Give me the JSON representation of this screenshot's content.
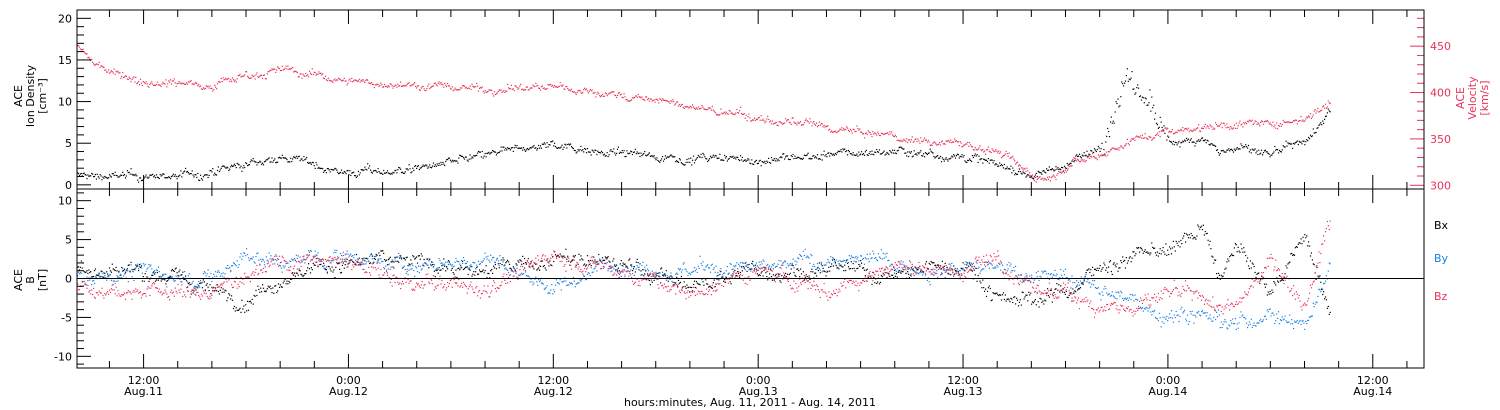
{
  "figure": {
    "xlabel": "hours:minutes, Aug. 11, 2011 - Aug. 14, 2011",
    "time_ticks": [
      {
        "t": 12,
        "time": "12:00",
        "date": "Aug.11"
      },
      {
        "t": 24,
        "time": "0:00",
        "date": "Aug.12"
      },
      {
        "t": 36,
        "time": "12:00",
        "date": "Aug.12"
      },
      {
        "t": 48,
        "time": "0:00",
        "date": "Aug.13"
      },
      {
        "t": 60,
        "time": "12:00",
        "date": "Aug.13"
      },
      {
        "t": 72,
        "time": "0:00",
        "date": "Aug.14"
      },
      {
        "t": 84,
        "time": "12:00",
        "date": "Aug.14"
      }
    ],
    "xlim_hours_from_aug11_00": [
      8.1,
      87
    ]
  },
  "colors": {
    "black": "#000000",
    "red": "#e8335a",
    "blue": "#1a7fe0"
  },
  "chart_data": [
    {
      "type": "scatter",
      "panel": "top",
      "ylabel": [
        "ACE",
        "Ion Density",
        "[cm⁻³]"
      ],
      "ylabel2": [
        "ACE",
        "Velocity",
        "[km/s]"
      ],
      "ylim": [
        -0.5,
        21
      ],
      "ylim2": [
        296,
        489
      ],
      "yticks": [
        "0",
        "5",
        "10",
        "15",
        "20"
      ],
      "yticks2": [
        "300",
        "350",
        "400",
        "450"
      ],
      "x_unit": "hours from 2011-08-11 00:00",
      "series": [
        {
          "axis": "left",
          "color": "black",
          "x": [
            8.1,
            12,
            16,
            20,
            24,
            28,
            32,
            36,
            40,
            44,
            48,
            52,
            56,
            60,
            62,
            64,
            66,
            68,
            69.5,
            71,
            72,
            74,
            75,
            76,
            78,
            80,
            81.5
          ],
          "y": [
            1.2,
            1.0,
            1.4,
            3.5,
            1.5,
            2.0,
            3.5,
            5.0,
            3.8,
            3.3,
            3.0,
            3.6,
            4.2,
            3.5,
            2.5,
            1.2,
            2.5,
            4.5,
            13,
            10,
            5.0,
            6.0,
            4.0,
            4.5,
            3.5,
            5.0,
            9.0
          ]
        },
        {
          "axis": "right",
          "color": "red",
          "x": [
            8.1,
            9,
            12,
            16,
            18,
            20,
            24,
            28,
            32,
            36,
            40,
            44,
            48,
            52,
            56,
            60,
            62,
            64,
            65,
            66,
            68,
            70,
            72,
            74,
            76,
            78,
            80,
            81.5
          ],
          "y": [
            450,
            432,
            413,
            410,
            420,
            425,
            413,
            408,
            405,
            406,
            398,
            385,
            372,
            362,
            352,
            345,
            337,
            312,
            309,
            325,
            335,
            350,
            360,
            364,
            368,
            365,
            375,
            390
          ]
        }
      ]
    },
    {
      "type": "scatter",
      "panel": "bottom",
      "ylabel": [
        "ACE",
        "B",
        "[nT]"
      ],
      "ylim": [
        -11.5,
        11.5
      ],
      "yticks": [
        "-10",
        "-5",
        "0",
        "5",
        "10"
      ],
      "zero_line": true,
      "x_unit": "hours from 2011-08-11 00:00",
      "series": [
        {
          "name": "Bx",
          "color": "black",
          "x": [
            8.1,
            12,
            16,
            18,
            20,
            24,
            28,
            32,
            36,
            40,
            44,
            48,
            52,
            56,
            60,
            62,
            64,
            66,
            68,
            70,
            72,
            74,
            75,
            76,
            78,
            80,
            81.5
          ],
          "y": [
            1.5,
            1.2,
            -1.5,
            -2.5,
            0.5,
            2.0,
            2.5,
            1.0,
            2.5,
            1.8,
            -1.0,
            1.5,
            1.0,
            0.5,
            2.0,
            -2.0,
            -2.5,
            -1.5,
            1.5,
            3.0,
            3.5,
            6.5,
            0.0,
            4.0,
            -2.0,
            6.0,
            -5.0
          ]
        },
        {
          "name": "By",
          "color": "blue",
          "x": [
            8.1,
            12,
            16,
            18,
            20,
            24,
            28,
            32,
            36,
            40,
            44,
            48,
            52,
            56,
            60,
            62,
            64,
            66,
            68,
            70,
            72,
            74,
            76,
            78,
            80,
            81.5
          ],
          "y": [
            0.5,
            1.0,
            0.0,
            3.0,
            2.0,
            3.0,
            1.5,
            2.5,
            -1.0,
            2.5,
            1.0,
            1.0,
            2.5,
            2.0,
            1.5,
            1.0,
            1.0,
            0.0,
            -1.0,
            -3.0,
            -4.5,
            -4.0,
            -6.0,
            -4.0,
            -6.0,
            2.0
          ]
        },
        {
          "name": "Bz",
          "color": "red",
          "x": [
            8.1,
            12,
            16,
            18,
            20,
            24,
            28,
            32,
            36,
            40,
            44,
            48,
            52,
            56,
            60,
            62,
            64,
            66,
            68,
            70,
            72,
            74,
            76,
            78,
            80,
            81.5
          ],
          "y": [
            -0.5,
            -1.5,
            -2.0,
            1.0,
            2.5,
            2.0,
            -1.0,
            -1.0,
            3.0,
            1.0,
            -2.0,
            1.0,
            -1.5,
            2.0,
            1.0,
            3.0,
            -1.5,
            -2.0,
            -3.0,
            -4.0,
            -2.0,
            -3.0,
            -4.0,
            3.0,
            -3.0,
            8.0
          ]
        }
      ]
    }
  ]
}
